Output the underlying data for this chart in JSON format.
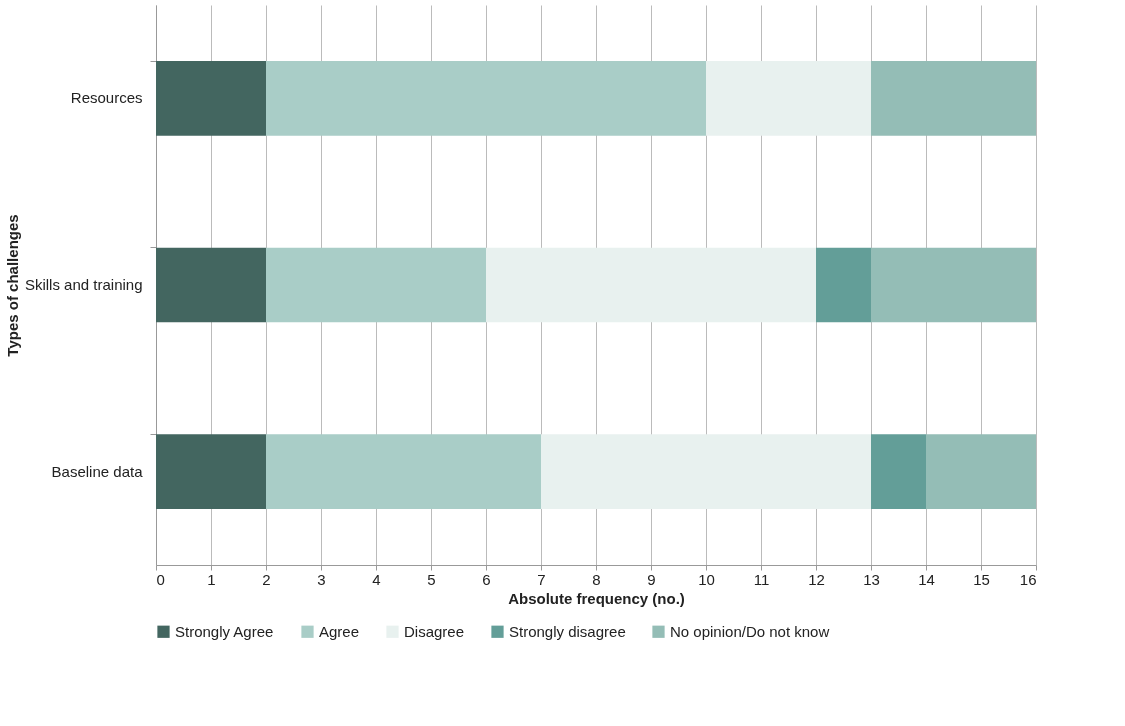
{
  "chart_data": {
    "type": "bar",
    "orientation": "horizontal",
    "stacked": true,
    "xlabel": "Absolute frequency (no.)",
    "ylabel": "Types of challenges",
    "categories": [
      "Resources",
      "Skills and training",
      "Baseline data"
    ],
    "series": [
      {
        "name": "Strongly Agree",
        "color": "#436660",
        "values": [
          2,
          2,
          2
        ]
      },
      {
        "name": "Agree",
        "color": "#a9cdc7",
        "values": [
          8,
          4,
          5
        ]
      },
      {
        "name": "Disagree",
        "color": "#e8f1ef",
        "values": [
          3,
          6,
          6
        ]
      },
      {
        "name": "Strongly disagree",
        "color": "#639e98",
        "values": [
          0,
          1,
          1
        ]
      },
      {
        "name": "No opinion/Do not know",
        "color": "#94bdb6",
        "values": [
          3,
          3,
          2
        ]
      }
    ],
    "xlim": [
      0,
      16
    ],
    "xticks": [
      0,
      1,
      2,
      3,
      4,
      5,
      6,
      7,
      8,
      9,
      10,
      11,
      12,
      13,
      14,
      15,
      16
    ],
    "grid": "x",
    "legend": "bottom"
  }
}
